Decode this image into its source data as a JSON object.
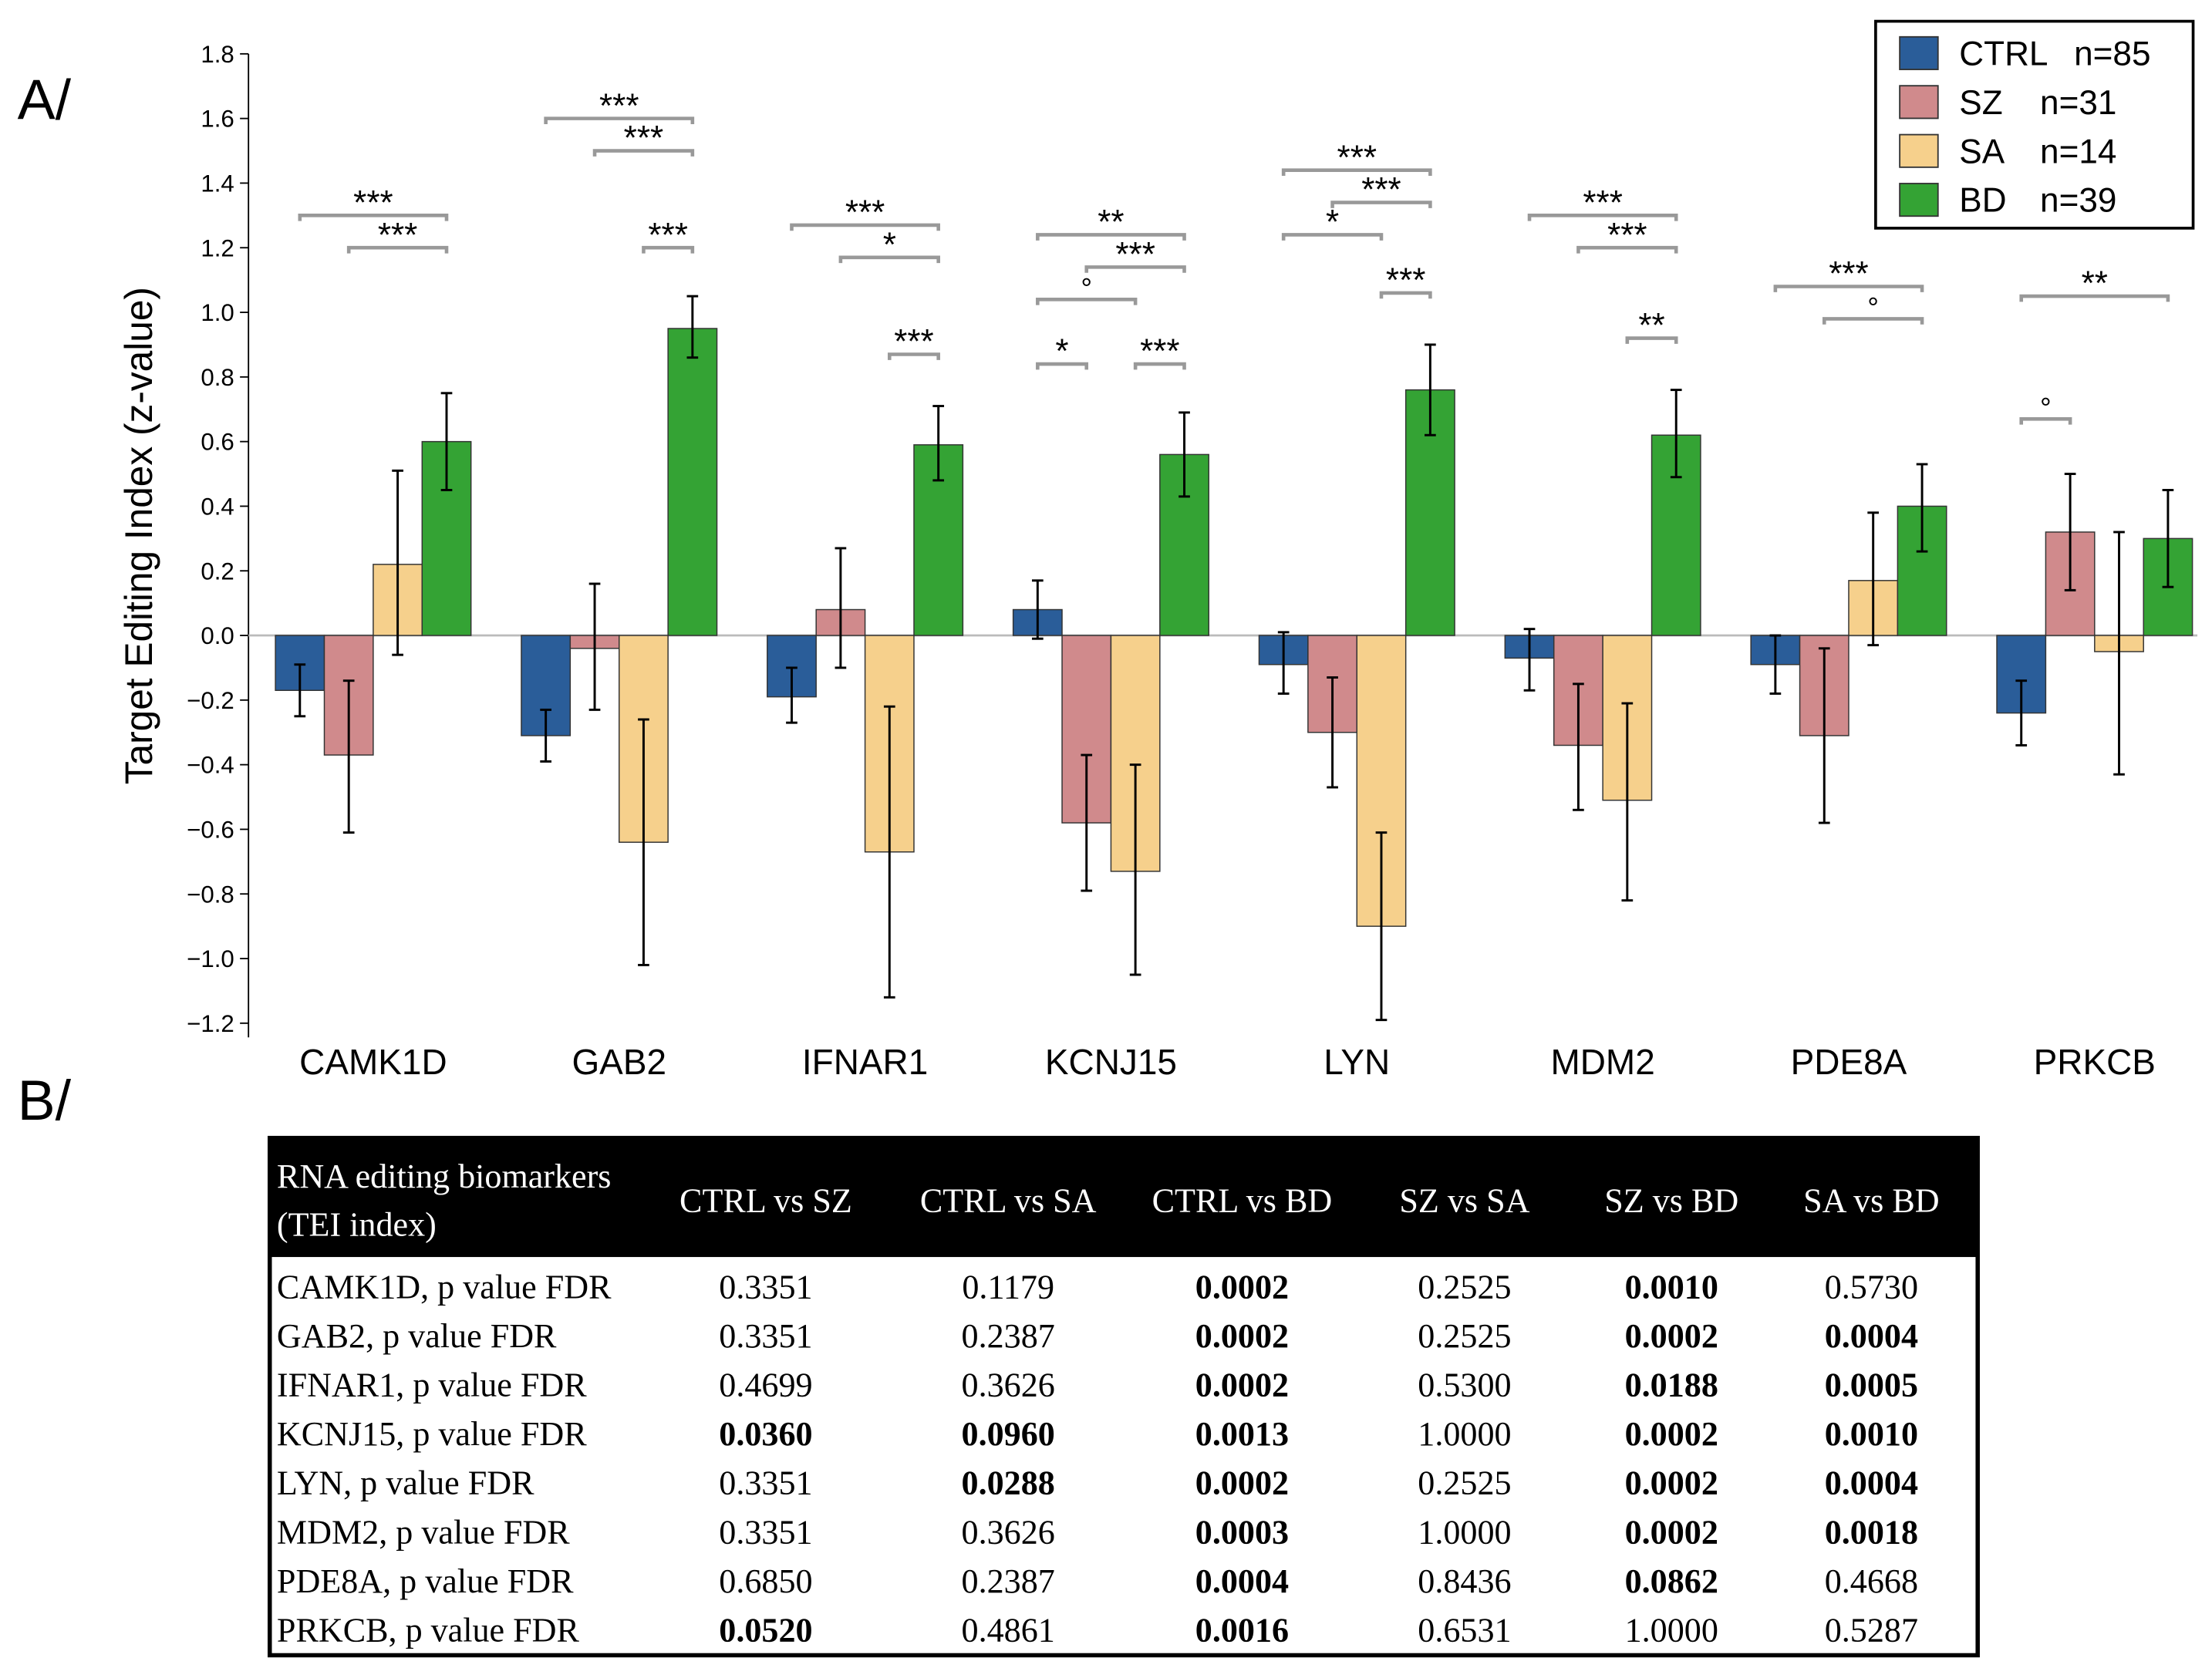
{
  "panel_labels": {
    "a": "A/",
    "b": "B/"
  },
  "chart_data": {
    "type": "bar",
    "ylabel": "Target Editing Index (z-value)",
    "xlabel": "",
    "ylim": [
      -1.2,
      1.8
    ],
    "yticks": [
      "1.8",
      "1.6",
      "1.4",
      "1.2",
      "1.0",
      "0.8",
      "0.6",
      "0.4",
      "0.2",
      "0.0",
      "−0.2",
      "−0.4",
      "−0.6",
      "−0.8",
      "−1.0",
      "−1.2"
    ],
    "ytick_values": [
      1.8,
      1.6,
      1.4,
      1.2,
      1.0,
      0.8,
      0.6,
      0.4,
      0.2,
      0.0,
      -0.2,
      -0.4,
      -0.6,
      -0.8,
      -1.0,
      -1.2
    ],
    "categories": [
      "CAMK1D",
      "GAB2",
      "IFNAR1",
      "KCNJ15",
      "LYN",
      "MDM2",
      "PDE8A",
      "PRKCB"
    ],
    "legend_position": "top-right",
    "series": [
      {
        "name": "CTRL",
        "n": "n=85",
        "color": "#2a5d99",
        "values": [
          -0.17,
          -0.31,
          -0.19,
          0.08,
          -0.09,
          -0.07,
          -0.09,
          -0.24
        ],
        "err_low": [
          -0.25,
          -0.39,
          -0.27,
          -0.01,
          -0.18,
          -0.17,
          -0.18,
          -0.34
        ],
        "err_high": [
          -0.09,
          -0.23,
          -0.1,
          0.17,
          0.01,
          0.02,
          0.0,
          -0.14
        ]
      },
      {
        "name": "SZ",
        "n": "n=31",
        "color": "#d08a8c",
        "values": [
          -0.37,
          -0.04,
          0.08,
          -0.58,
          -0.3,
          -0.34,
          -0.31,
          0.32
        ],
        "err_low": [
          -0.61,
          -0.23,
          -0.1,
          -0.79,
          -0.47,
          -0.54,
          -0.58,
          0.14
        ],
        "err_high": [
          -0.14,
          0.16,
          0.27,
          -0.37,
          -0.13,
          -0.15,
          -0.04,
          0.5
        ]
      },
      {
        "name": "SA",
        "n": "n=14",
        "color": "#f6d08c",
        "values": [
          0.22,
          -0.64,
          -0.67,
          -0.73,
          -0.9,
          -0.51,
          0.17,
          -0.05
        ],
        "err_low": [
          -0.06,
          -1.02,
          -1.12,
          -1.05,
          -1.19,
          -0.82,
          -0.03,
          -0.43
        ],
        "err_high": [
          0.51,
          -0.26,
          -0.22,
          -0.4,
          -0.61,
          -0.21,
          0.38,
          0.32
        ]
      },
      {
        "name": "BD",
        "n": "n=39",
        "color": "#34a334",
        "values": [
          0.6,
          0.95,
          0.59,
          0.56,
          0.76,
          0.62,
          0.4,
          0.3
        ],
        "err_low": [
          0.45,
          0.86,
          0.48,
          0.43,
          0.62,
          0.49,
          0.26,
          0.15
        ],
        "err_high": [
          0.75,
          1.05,
          0.71,
          0.69,
          0.9,
          0.76,
          0.53,
          0.45
        ]
      }
    ],
    "significance": [
      {
        "category": 0,
        "from": "CTRL",
        "to": "BD",
        "y": 1.3,
        "label": "***"
      },
      {
        "category": 0,
        "from": "SZ",
        "to": "BD",
        "y": 1.2,
        "label": "***"
      },
      {
        "category": 1,
        "from": "CTRL",
        "to": "BD",
        "y": 1.6,
        "label": "***"
      },
      {
        "category": 1,
        "from": "SZ",
        "to": "BD",
        "y": 1.5,
        "label": "***"
      },
      {
        "category": 1,
        "from": "SA",
        "to": "BD",
        "y": 1.2,
        "label": "***"
      },
      {
        "category": 2,
        "from": "CTRL",
        "to": "BD",
        "y": 1.27,
        "label": "***"
      },
      {
        "category": 2,
        "from": "SZ",
        "to": "BD",
        "y": 1.17,
        "label": "*"
      },
      {
        "category": 2,
        "from": "SA",
        "to": "BD",
        "y": 0.87,
        "label": "***"
      },
      {
        "category": 3,
        "from": "CTRL",
        "to": "BD",
        "y": 1.24,
        "label": "**"
      },
      {
        "category": 3,
        "from": "SZ",
        "to": "BD",
        "y": 1.14,
        "label": "***"
      },
      {
        "category": 3,
        "from": "CTRL",
        "to": "SA",
        "y": 1.04,
        "label": "°"
      },
      {
        "category": 3,
        "from": "CTRL",
        "to": "SZ",
        "y": 0.84,
        "label": "*"
      },
      {
        "category": 3,
        "from": "SA",
        "to": "BD",
        "y": 0.84,
        "label": "***"
      },
      {
        "category": 4,
        "from": "CTRL",
        "to": "BD",
        "y": 1.44,
        "label": "***"
      },
      {
        "category": 4,
        "from": "SZ",
        "to": "BD",
        "y": 1.34,
        "label": "***"
      },
      {
        "category": 4,
        "from": "CTRL",
        "to": "SA",
        "y": 1.24,
        "label": "*"
      },
      {
        "category": 4,
        "from": "SA",
        "to": "BD",
        "y": 1.06,
        "label": "***"
      },
      {
        "category": 5,
        "from": "CTRL",
        "to": "BD",
        "y": 1.3,
        "label": "***"
      },
      {
        "category": 5,
        "from": "SZ",
        "to": "BD",
        "y": 1.2,
        "label": "***"
      },
      {
        "category": 5,
        "from": "SA",
        "to": "BD",
        "y": 0.92,
        "label": "**"
      },
      {
        "category": 6,
        "from": "CTRL",
        "to": "BD",
        "y": 1.08,
        "label": "***"
      },
      {
        "category": 6,
        "from": "SZ",
        "to": "BD",
        "y": 0.98,
        "label": "°"
      },
      {
        "category": 7,
        "from": "CTRL",
        "to": "BD",
        "y": 1.05,
        "label": "**"
      },
      {
        "category": 7,
        "from": "CTRL",
        "to": "SZ",
        "y": 0.67,
        "label": "°"
      }
    ]
  },
  "table": {
    "header_line1": "RNA editing biomarkers",
    "header_line2": "(TEI index)",
    "columns": [
      "CTRL vs SZ",
      "CTRL vs SA",
      "CTRL vs BD",
      "SZ vs SA",
      "SZ vs BD",
      "SA vs BD"
    ],
    "rows": [
      {
        "label": "CAMK1D, p value FDR",
        "values": [
          "0.3351",
          "0.1179",
          "0.0002",
          "0.2525",
          "0.0010",
          "0.5730"
        ],
        "bold": [
          false,
          false,
          true,
          false,
          true,
          false
        ]
      },
      {
        "label": "GAB2, p value FDR",
        "values": [
          "0.3351",
          "0.2387",
          "0.0002",
          "0.2525",
          "0.0002",
          "0.0004"
        ],
        "bold": [
          false,
          false,
          true,
          false,
          true,
          true
        ]
      },
      {
        "label": "IFNAR1, p value FDR",
        "values": [
          "0.4699",
          "0.3626",
          "0.0002",
          "0.5300",
          "0.0188",
          "0.0005"
        ],
        "bold": [
          false,
          false,
          true,
          false,
          true,
          true
        ]
      },
      {
        "label": "KCNJ15, p value FDR",
        "values": [
          "0.0360",
          "0.0960",
          "0.0013",
          "1.0000",
          "0.0002",
          "0.0010"
        ],
        "bold": [
          true,
          true,
          true,
          false,
          true,
          true
        ]
      },
      {
        "label": "LYN, p value FDR",
        "values": [
          "0.3351",
          "0.0288",
          "0.0002",
          "0.2525",
          "0.0002",
          "0.0004"
        ],
        "bold": [
          false,
          true,
          true,
          false,
          true,
          true
        ]
      },
      {
        "label": "MDM2, p value FDR",
        "values": [
          "0.3351",
          "0.3626",
          "0.0003",
          "1.0000",
          "0.0002",
          "0.0018"
        ],
        "bold": [
          false,
          false,
          true,
          false,
          true,
          true
        ]
      },
      {
        "label": "PDE8A, p value FDR",
        "values": [
          "0.6850",
          "0.2387",
          "0.0004",
          "0.8436",
          "0.0862",
          "0.4668"
        ],
        "bold": [
          false,
          false,
          true,
          false,
          true,
          false
        ]
      },
      {
        "label": "PRKCB, p value FDR",
        "values": [
          "0.0520",
          "0.4861",
          "0.0016",
          "0.6531",
          "1.0000",
          "0.5287"
        ],
        "bold": [
          true,
          false,
          true,
          false,
          false,
          false
        ]
      }
    ]
  }
}
